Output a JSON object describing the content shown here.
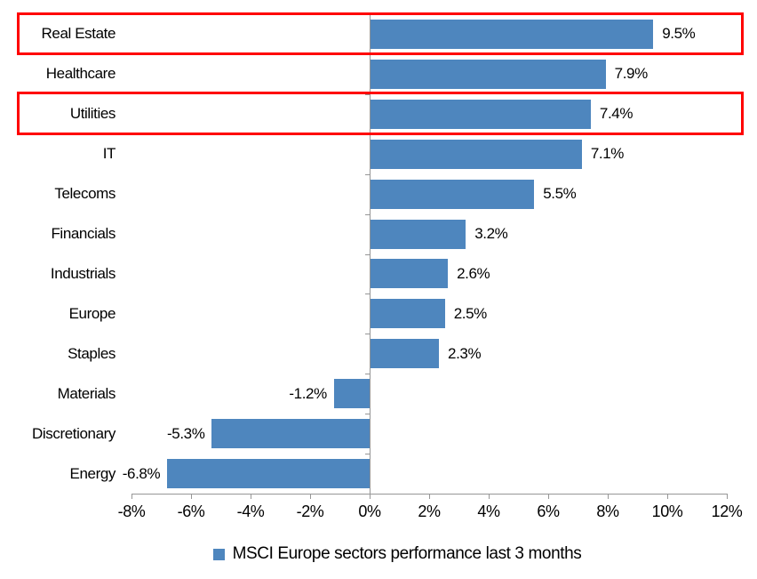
{
  "chart_data": {
    "type": "bar",
    "orientation": "horizontal",
    "title": "",
    "xlabel": "",
    "ylabel": "",
    "categories": [
      "Real Estate",
      "Healthcare",
      "Utilities",
      "IT",
      "Telecoms",
      "Financials",
      "Industrials",
      "Europe",
      "Staples",
      "Materials",
      "Discretionary",
      "Energy"
    ],
    "values": [
      9.5,
      7.9,
      7.4,
      7.1,
      5.5,
      3.2,
      2.6,
      2.5,
      2.3,
      -1.2,
      -5.3,
      -6.8
    ],
    "value_labels": [
      "9.5%",
      "7.9%",
      "7.4%",
      "7.1%",
      "5.5%",
      "3.2%",
      "2.6%",
      "2.5%",
      "2.3%",
      "-1.2%",
      "-5.3%",
      "-6.8%"
    ],
    "xlim": [
      -8,
      12
    ],
    "x_tick_values": [
      -8,
      -6,
      -4,
      -2,
      0,
      2,
      4,
      6,
      8,
      10,
      12
    ],
    "x_tick_labels": [
      "-8%",
      "-6%",
      "-4%",
      "-2%",
      "0%",
      "2%",
      "4%",
      "6%",
      "8%",
      "10%",
      "12%"
    ],
    "grid": false,
    "legend": {
      "position": "bottom",
      "label": "MSCI Europe sectors performance last 3 months"
    },
    "colors": {
      "bar": "#4e86be",
      "axis": "#969696",
      "text": "#000000",
      "highlight_border": "#ff0000"
    },
    "highlighted_categories": [
      "Real Estate",
      "Utilities"
    ]
  }
}
